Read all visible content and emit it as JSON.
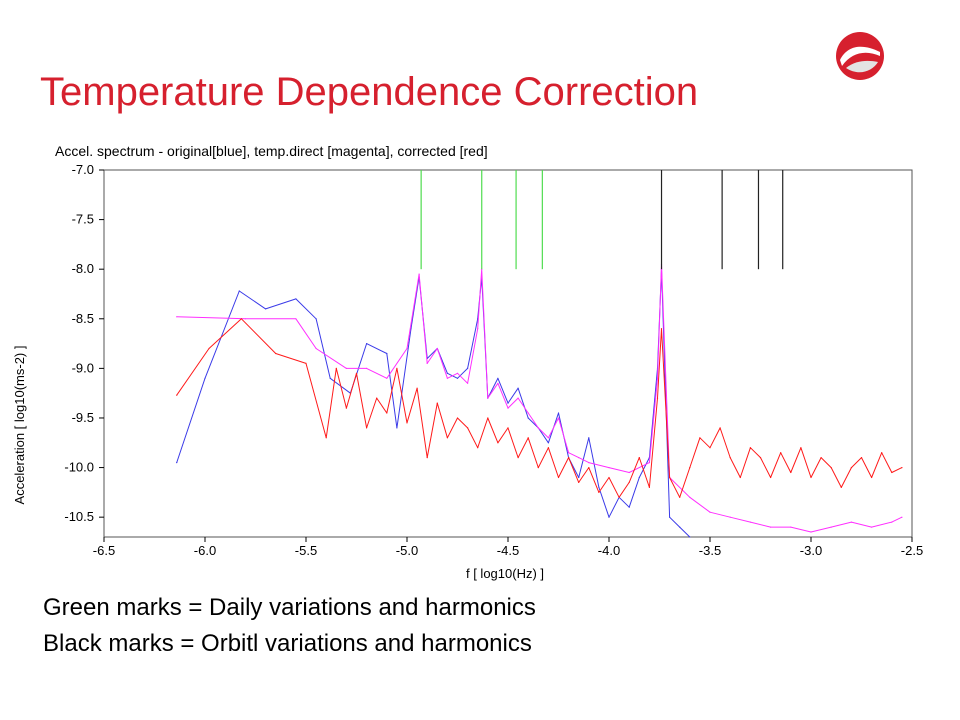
{
  "slide": {
    "title": "Temperature Dependence Correction",
    "captions": [
      "Green marks = Daily variations and harmonics",
      "Black marks = Orbitl variations and harmonics"
    ]
  },
  "colors": {
    "title": "#d6202e",
    "original": "#3a3ae8",
    "temp_direct": "#ff2fff",
    "corrected": "#ff1a1a",
    "daily_marks": "#4fdc4f",
    "orbital_marks": "#222222"
  },
  "chart_data": {
    "type": "line",
    "title": "Accel. spectrum - original[blue], temp.direct [magenta], corrected [red]",
    "xlabel": "f [ log10(Hz) ]",
    "ylabel": "Acceleration [ log10(ms-2) ]",
    "xlim": [
      -6.5,
      -2.5
    ],
    "ylim": [
      -10.7,
      -7.0
    ],
    "xticks": [
      "-6.5",
      "-6.0",
      "-5.5",
      "-5.0",
      "-4.5",
      "-4.0",
      "-3.5",
      "-3.0",
      "-2.5"
    ],
    "yticks": [
      "-7.0",
      "-7.5",
      "-8.0",
      "-8.5",
      "-9.0",
      "-9.5",
      "-10.0",
      "-10.5"
    ],
    "grid": false,
    "legend": "none",
    "series": [
      {
        "name": "original",
        "color": "#3a3ae8",
        "x": [
          -6.14,
          -6.0,
          -5.83,
          -5.7,
          -5.55,
          -5.45,
          -5.38,
          -5.28,
          -5.2,
          -5.1,
          -5.05,
          -4.98,
          -4.94,
          -4.9,
          -4.85,
          -4.8,
          -4.75,
          -4.7,
          -4.65,
          -4.63,
          -4.6,
          -4.55,
          -4.5,
          -4.45,
          -4.4,
          -4.35,
          -4.3,
          -4.25,
          -4.2,
          -4.15,
          -4.1,
          -4.05,
          -4.0,
          -3.95,
          -3.9,
          -3.85,
          -3.8,
          -3.76,
          -3.74,
          -3.7,
          -3.65,
          -3.6
        ],
        "y": [
          -9.95,
          -9.1,
          -8.22,
          -8.4,
          -8.3,
          -8.5,
          -9.1,
          -9.25,
          -8.75,
          -8.85,
          -9.6,
          -8.6,
          -8.08,
          -8.9,
          -8.8,
          -9.05,
          -9.1,
          -9.0,
          -8.5,
          -8.08,
          -9.3,
          -9.1,
          -9.35,
          -9.2,
          -9.5,
          -9.6,
          -9.75,
          -9.45,
          -9.9,
          -10.1,
          -9.7,
          -10.2,
          -10.5,
          -10.3,
          -10.4,
          -10.1,
          -9.9,
          -9.0,
          -8.0,
          -10.5,
          -10.6,
          -10.7
        ]
      },
      {
        "name": "temp.direct",
        "color": "#ff2fff",
        "x": [
          -6.14,
          -5.8,
          -5.55,
          -5.45,
          -5.3,
          -5.2,
          -5.1,
          -5.0,
          -4.94,
          -4.9,
          -4.85,
          -4.8,
          -4.75,
          -4.7,
          -4.65,
          -4.63,
          -4.6,
          -4.55,
          -4.5,
          -4.45,
          -4.4,
          -4.35,
          -4.3,
          -4.25,
          -4.2,
          -4.15,
          -4.1,
          -4.0,
          -3.9,
          -3.8,
          -3.76,
          -3.74,
          -3.7,
          -3.6,
          -3.5,
          -3.4,
          -3.3,
          -3.2,
          -3.1,
          -3.0,
          -2.9,
          -2.8,
          -2.7,
          -2.6,
          -2.55
        ],
        "y": [
          -8.48,
          -8.5,
          -8.5,
          -8.8,
          -9.0,
          -9.0,
          -9.1,
          -8.8,
          -8.05,
          -8.95,
          -8.8,
          -9.1,
          -9.05,
          -9.15,
          -8.6,
          -8.0,
          -9.3,
          -9.15,
          -9.4,
          -9.3,
          -9.45,
          -9.6,
          -9.7,
          -9.5,
          -9.85,
          -9.9,
          -9.95,
          -10.0,
          -10.05,
          -9.95,
          -9.1,
          -7.95,
          -10.1,
          -10.3,
          -10.45,
          -10.5,
          -10.55,
          -10.6,
          -10.6,
          -10.65,
          -10.6,
          -10.55,
          -10.6,
          -10.55,
          -10.5
        ]
      },
      {
        "name": "corrected",
        "color": "#ff1a1a",
        "x": [
          -6.14,
          -5.98,
          -5.82,
          -5.65,
          -5.5,
          -5.4,
          -5.35,
          -5.3,
          -5.25,
          -5.2,
          -5.15,
          -5.1,
          -5.05,
          -5.0,
          -4.95,
          -4.9,
          -4.85,
          -4.8,
          -4.75,
          -4.7,
          -4.65,
          -4.6,
          -4.55,
          -4.5,
          -4.45,
          -4.4,
          -4.35,
          -4.3,
          -4.25,
          -4.2,
          -4.15,
          -4.1,
          -4.05,
          -4.0,
          -3.95,
          -3.9,
          -3.85,
          -3.8,
          -3.76,
          -3.74,
          -3.7,
          -3.65,
          -3.6,
          -3.55,
          -3.5,
          -3.45,
          -3.4,
          -3.35,
          -3.3,
          -3.25,
          -3.2,
          -3.15,
          -3.1,
          -3.05,
          -3.0,
          -2.95,
          -2.9,
          -2.85,
          -2.8,
          -2.75,
          -2.7,
          -2.65,
          -2.6,
          -2.55
        ],
        "y": [
          -9.27,
          -8.8,
          -8.5,
          -8.85,
          -8.95,
          -9.7,
          -9.0,
          -9.4,
          -9.05,
          -9.6,
          -9.3,
          -9.45,
          -9.0,
          -9.55,
          -9.2,
          -9.9,
          -9.35,
          -9.7,
          -9.5,
          -9.6,
          -9.8,
          -9.5,
          -9.75,
          -9.6,
          -9.9,
          -9.7,
          -10.0,
          -9.8,
          -10.1,
          -9.9,
          -10.15,
          -10.0,
          -10.25,
          -10.1,
          -10.3,
          -10.15,
          -9.9,
          -10.2,
          -9.3,
          -8.6,
          -10.1,
          -10.3,
          -10.0,
          -9.7,
          -9.8,
          -9.6,
          -9.9,
          -10.1,
          -9.8,
          -9.9,
          -10.1,
          -9.85,
          -10.05,
          -9.8,
          -10.1,
          -9.9,
          -10.0,
          -10.2,
          -10.0,
          -9.9,
          -10.1,
          -9.85,
          -10.05,
          -10.0
        ]
      }
    ],
    "marks": {
      "daily": {
        "color": "#4fdc4f",
        "x": [
          -4.93,
          -4.63,
          -4.46,
          -4.33
        ],
        "y_from": -7.0,
        "y_to": -8.0
      },
      "orbital": {
        "color": "#222222",
        "x": [
          -3.74,
          -3.44,
          -3.26,
          -3.14
        ],
        "y_from": -7.0,
        "y_to": -8.0
      }
    }
  }
}
